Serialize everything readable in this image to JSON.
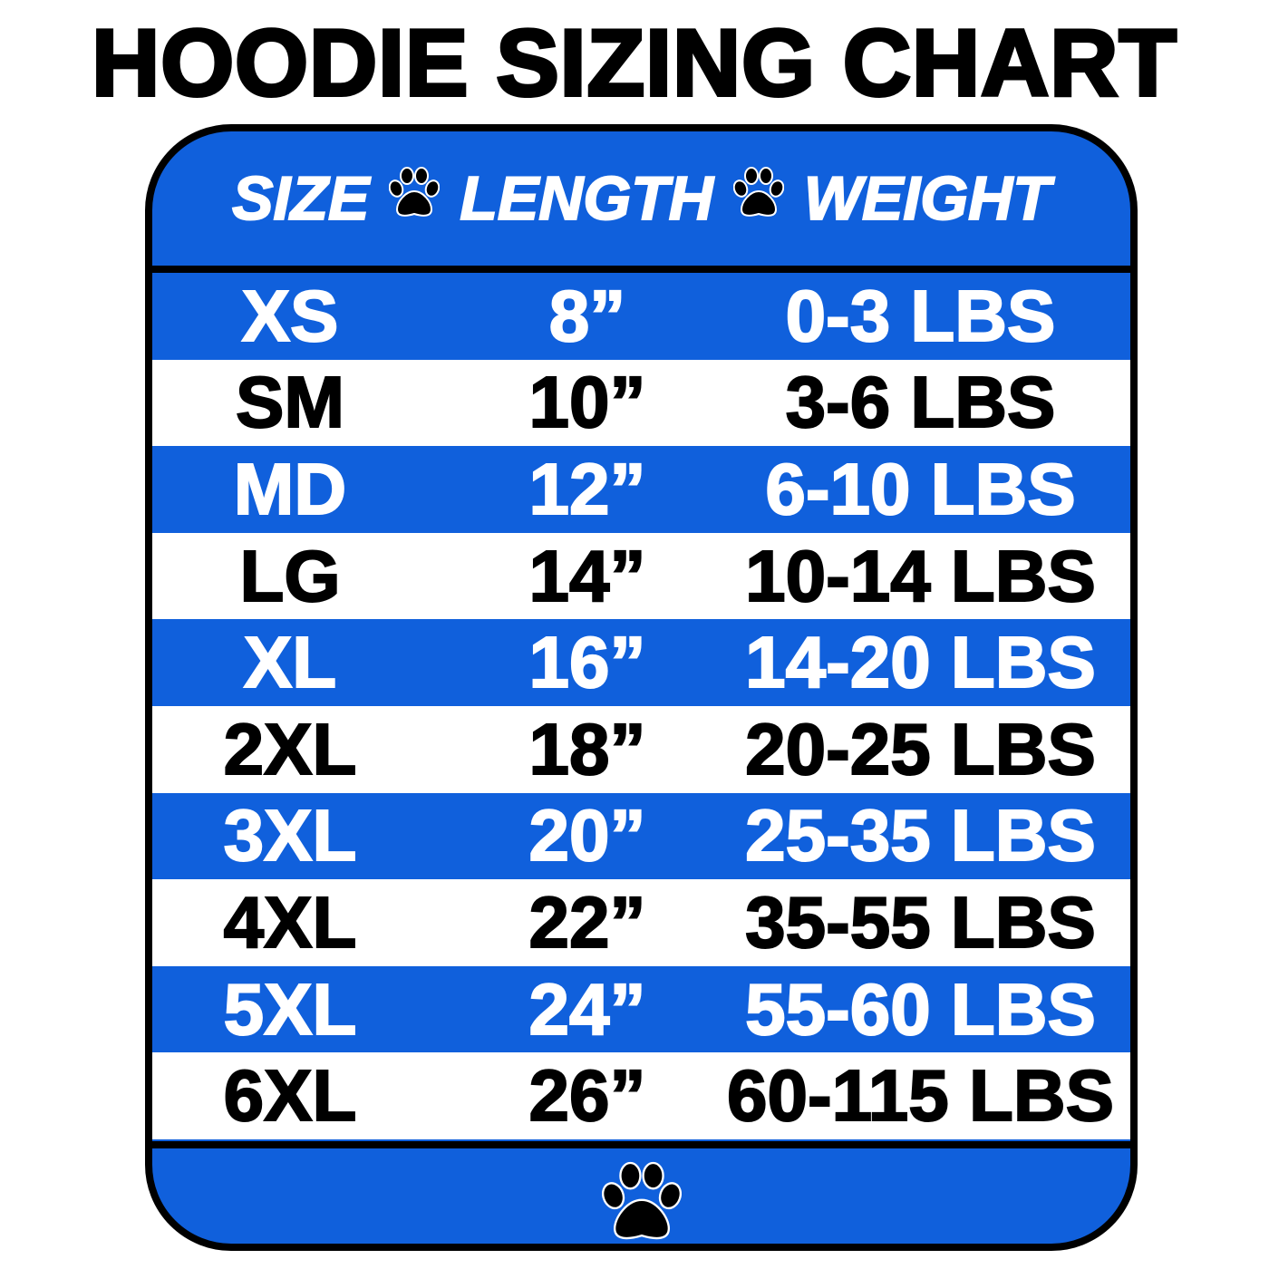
{
  "title": "HOODIE SIZING CHART",
  "header": {
    "size": "SIZE",
    "length": "LENGTH",
    "weight": "WEIGHT",
    "separator_icon": "paw-icon"
  },
  "colors": {
    "blue": "#1060dc",
    "white": "#ffffff",
    "black": "#000000"
  },
  "rows": [
    {
      "size": "XS",
      "length": "8”",
      "weight": "0-3 LBS"
    },
    {
      "size": "SM",
      "length": "10”",
      "weight": "3-6 LBS"
    },
    {
      "size": "MD",
      "length": "12”",
      "weight": "6-10 LBS"
    },
    {
      "size": "LG",
      "length": "14”",
      "weight": "10-14 LBS"
    },
    {
      "size": "XL",
      "length": "16”",
      "weight": "14-20 LBS"
    },
    {
      "size": "2XL",
      "length": "18”",
      "weight": "20-25 LBS"
    },
    {
      "size": "3XL",
      "length": "20”",
      "weight": "25-35 LBS"
    },
    {
      "size": "4XL",
      "length": "22”",
      "weight": "35-55 LBS"
    },
    {
      "size": "5XL",
      "length": "24”",
      "weight": "55-60 LBS"
    },
    {
      "size": "6XL",
      "length": "26”",
      "weight": "60-115 LBS"
    }
  ],
  "footer": {
    "icon": "paw-icon"
  }
}
